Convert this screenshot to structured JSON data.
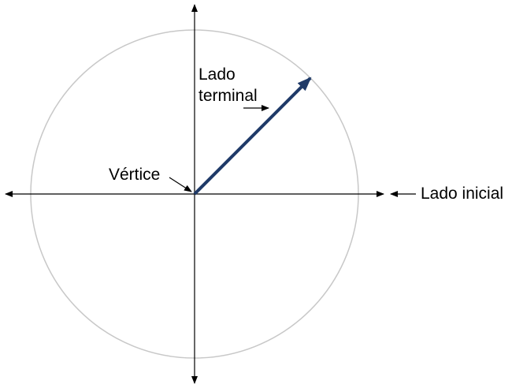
{
  "labels": {
    "vertex": "Vértice",
    "terminal_line1": "Lado",
    "terminal_line2": "terminal",
    "initial": "Lado inicial"
  },
  "colors": {
    "circle": "#c8c8c8",
    "axes": "#000000",
    "terminal_side": "#1f3a68"
  },
  "angle_degrees": 45
}
